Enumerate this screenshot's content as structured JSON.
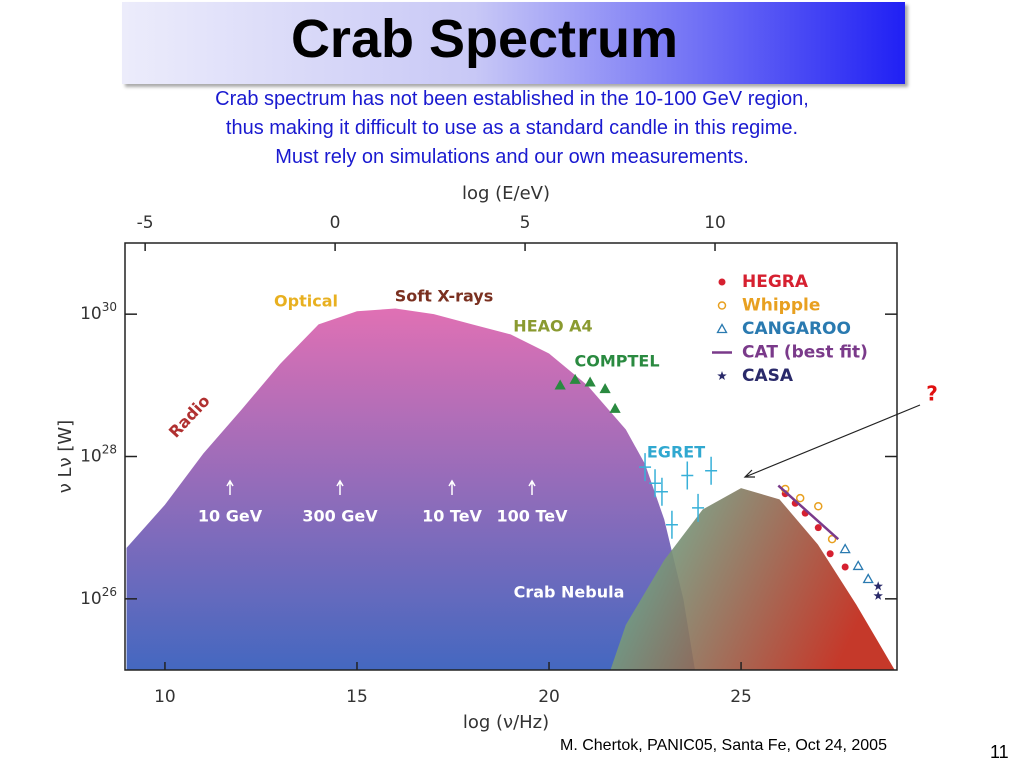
{
  "title": "Crab Spectrum",
  "subtitle": [
    "Crab spectrum has not been established in the 10-100 GeV region,",
    "thus making it difficult to use as a standard candle in this regime.",
    "Must rely on simulations and our own measurements."
  ],
  "footer": "M. Chertok, PANIC05, Santa Fe, Oct 24, 2005",
  "page_number": "11",
  "chart_data": {
    "type": "area",
    "xlabel": "log (ν/Hz)",
    "x2label": "log (E/eV)",
    "ylabel": "ν Lν [W]",
    "xlim": [
      8.96,
      29.06
    ],
    "xticks": [
      10,
      15,
      20,
      25
    ],
    "x2lim": [
      -5.53,
      14.79
    ],
    "x2ticks": [
      -5,
      0,
      5,
      10
    ],
    "ylim": [
      1e+25,
      1e+31
    ],
    "yscale": "log",
    "yticks": [
      {
        "value": 1e+26,
        "label": "10^26"
      },
      {
        "value": 1e+28,
        "label": "10^28"
      },
      {
        "value": 1e+30,
        "label": "10^30"
      }
    ],
    "series": [
      {
        "type": "area",
        "color": "#e070b4",
        "color2": "#4468c0",
        "x": [
          9,
          10,
          11,
          12,
          13,
          14,
          15,
          16,
          17,
          18,
          19,
          20,
          21,
          22,
          22.5,
          23,
          23.5,
          23.8
        ],
        "values": [
          5.2e+26,
          2.1e+27,
          1.1e+28,
          4.6e+28,
          2e+29,
          7.2e+29,
          1.1e+30,
          1.2e+30,
          1e+30,
          7.2e+29,
          5.2e+29,
          2.8e+29,
          1e+29,
          2.4e+28,
          7.8e+27,
          1.3e+27,
          9.8e+25,
          1e+25
        ]
      },
      {
        "type": "area",
        "color": "#5cc0a0",
        "color2": "#c02818",
        "x": [
          21.6,
          22,
          23,
          24,
          25,
          26,
          27,
          28,
          29
        ],
        "values": [
          1e+25,
          4.3e+25,
          3.5e+26,
          1.8e+27,
          3.6e+27,
          2.5e+27,
          5.8e+26,
          8.3e+25,
          1e+25
        ]
      },
      {
        "type": "scatter",
        "marker": "cross",
        "color": "#38b0d8",
        "x": [
          22.5,
          22.76,
          22.94,
          23.2,
          23.6,
          23.88,
          24.22
        ],
        "values": [
          7.1e+27,
          4.2e+27,
          3.2e+27,
          1.1e+27,
          5.4e+27,
          1.9e+27,
          6.3e+27
        ]
      },
      {
        "type": "scatter",
        "marker": "triangle-filled",
        "color": "#2a8a40",
        "x": [
          20.29,
          20.68,
          21.07,
          21.46,
          21.72
        ],
        "values": [
          1e+29,
          1.2e+29,
          1.1e+29,
          8.9e+28,
          4.7e+28
        ]
      },
      {
        "type": "scatter",
        "marker": "dot",
        "name": "HEGRA",
        "color": "#d62030",
        "x": [
          26.15,
          26.41,
          26.67,
          27.01,
          27.32,
          27.71
        ],
        "values": [
          3e+27,
          2.2e+27,
          1.6e+27,
          1e+27,
          4.3e+26,
          2.8e+26
        ]
      },
      {
        "type": "scatter",
        "marker": "circle",
        "name": "Whipple",
        "color": "#e8a020",
        "x": [
          26.15,
          26.54,
          27.01,
          27.37
        ],
        "values": [
          3.5e+27,
          2.6e+27,
          2e+27,
          6.9e+26
        ]
      },
      {
        "type": "scatter",
        "marker": "triangle",
        "name": "CANGAROO",
        "color": "#2a7ab0",
        "x": [
          27.71,
          28.05,
          28.31
        ],
        "values": [
          5e+26,
          2.9e+26,
          1.9e+26
        ]
      },
      {
        "type": "line",
        "marker": "line",
        "name": "CAT (best fit)",
        "color": "#7a3a8a",
        "x": [
          25.97,
          27.53
        ],
        "values": [
          3.9e+27,
          6.9e+26
        ]
      },
      {
        "type": "scatter",
        "marker": "star",
        "name": "CASA",
        "color": "#2a2a6a",
        "x": [
          28.57,
          28.57
        ],
        "values": [
          1.5e+26,
          1.1e+26
        ]
      }
    ],
    "annotations": [
      {
        "text": "Radio",
        "color": "#b03030"
      },
      {
        "text": "Optical",
        "color": "#e8b020"
      },
      {
        "text": "Soft X-rays",
        "color": "#7a3020"
      },
      {
        "text": "HEAO A4",
        "color": "#8a9a30"
      },
      {
        "text": "COMPTEL",
        "color": "#2a8a40"
      },
      {
        "text": "EGRET",
        "color": "#30a8d0"
      },
      {
        "text": "10 GeV",
        "color": "#ffffff"
      },
      {
        "text": "300 GeV",
        "color": "#ffffff"
      },
      {
        "text": "10 TeV",
        "color": "#ffffff"
      },
      {
        "text": "100 TeV",
        "color": "#ffffff"
      },
      {
        "text": "Crab Nebula",
        "color": "#ffffff"
      },
      {
        "text": "?",
        "color": "#e01010"
      }
    ]
  }
}
